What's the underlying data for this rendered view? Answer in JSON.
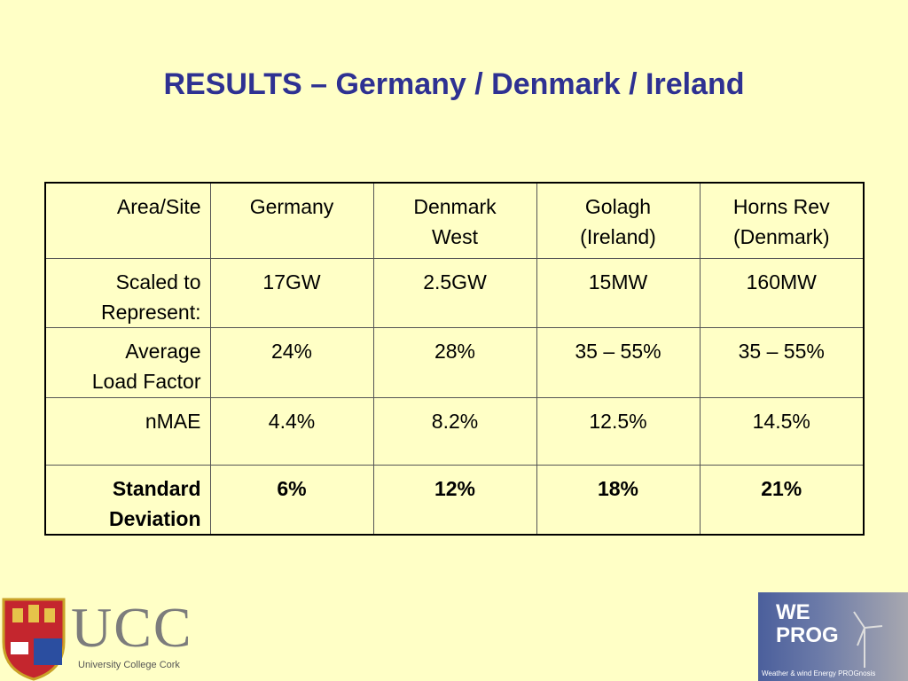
{
  "title": "RESULTS – Germany / Denmark / Ireland",
  "table": {
    "header": [
      [
        "Area/Site"
      ],
      [
        "Germany"
      ],
      [
        "Denmark",
        "West"
      ],
      [
        "Golagh",
        "(Ireland)"
      ],
      [
        "Horns Rev",
        "(Denmark)"
      ]
    ],
    "rows": [
      [
        [
          "Scaled to",
          "Represent:"
        ],
        [
          "17GW"
        ],
        [
          "2.5GW"
        ],
        [
          "15MW"
        ],
        [
          "160MW"
        ]
      ],
      [
        [
          "Average",
          "Load Factor"
        ],
        [
          "24%"
        ],
        [
          "28%"
        ],
        [
          "35 – 55%"
        ],
        [
          "35 – 55%"
        ]
      ],
      [
        [
          "nMAE"
        ],
        [
          "4.4%"
        ],
        [
          "8.2%"
        ],
        [
          "12.5%"
        ],
        [
          "14.5%"
        ]
      ],
      [
        [
          "Standard",
          "Deviation"
        ],
        [
          "6%"
        ],
        [
          "12%"
        ],
        [
          "18%"
        ],
        [
          "21%"
        ]
      ]
    ]
  },
  "logos": {
    "ucc": {
      "name": "UCC",
      "subtitle": "University College Cork"
    },
    "weprog": {
      "name": [
        "WE",
        "PROG"
      ],
      "subtitle": "Weather & wind Energy PROGnosis"
    }
  }
}
